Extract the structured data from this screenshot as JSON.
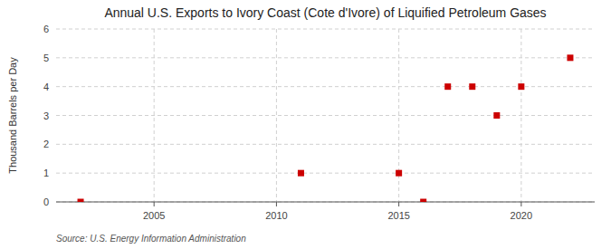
{
  "chart_data": {
    "type": "scatter",
    "title": "Annual U.S. Exports to Ivory Coast (Cote d'Ivore) of Liquified Petroleum Gases",
    "ylabel": "Thousand Barrels per Day",
    "annotation": "Source: U.S. Energy Information Administration",
    "x": [
      2002,
      2011,
      2015,
      2016,
      2017,
      2018,
      2019,
      2020,
      2022
    ],
    "values": [
      0,
      1,
      1,
      0,
      4,
      4,
      3,
      4,
      5
    ],
    "xlim": [
      2001,
      2023
    ],
    "ylim": [
      0,
      6
    ],
    "xticks": [
      2005,
      2010,
      2015,
      2020
    ],
    "yticks": [
      0,
      1,
      2,
      3,
      4,
      5,
      6
    ],
    "color": "#cc0000",
    "marker": "square",
    "grid": true
  }
}
